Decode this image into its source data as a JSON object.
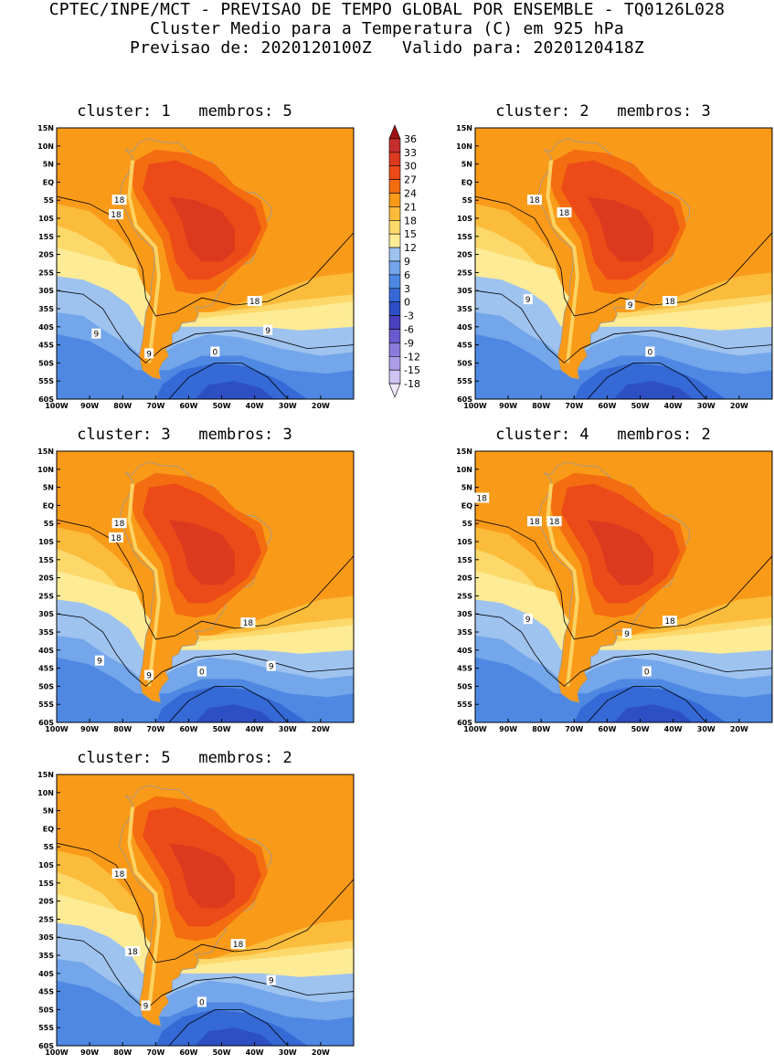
{
  "header": {
    "line1": "CPTEC/INPE/MCT - PREVISAO DE TEMPO GLOBAL POR ENSEMBLE - TQ0126L028",
    "line2": "Cluster Medio para a Temperatura (C) em 925 hPa",
    "line3": "Previsao de: 2020120100Z   Valido para: 2020120418Z"
  },
  "axes": {
    "lat_ticks": [
      "15N",
      "10N",
      "5N",
      "EQ",
      "5S",
      "10S",
      "15S",
      "20S",
      "25S",
      "30S",
      "35S",
      "40S",
      "45S",
      "50S",
      "55S",
      "60S"
    ],
    "lon_ticks": [
      "100W",
      "90W",
      "80W",
      "70W",
      "60W",
      "50W",
      "40W",
      "30W",
      "20W"
    ]
  },
  "panels": [
    {
      "title": "cluster: 1   membros: 5",
      "contour_labels": [
        "18",
        "18",
        "18",
        "9",
        "9",
        "9",
        "0"
      ]
    },
    {
      "title": "cluster: 2   membros: 3",
      "contour_labels": [
        "18",
        "18",
        "18",
        "9",
        "9",
        "0"
      ]
    },
    {
      "title": "cluster: 3   membros: 3",
      "contour_labels": [
        "18",
        "18",
        "18",
        "9",
        "9",
        "9",
        "0"
      ]
    },
    {
      "title": "cluster: 4   membros: 2",
      "contour_labels": [
        "18",
        "18",
        "18",
        "18",
        "9",
        "9",
        "0"
      ]
    },
    {
      "title": "cluster: 5   membros: 2",
      "contour_labels": [
        "18",
        "18",
        "18",
        "9",
        "9",
        "0"
      ]
    }
  ],
  "colorbar": {
    "labels": [
      "36",
      "33",
      "30",
      "27",
      "24",
      "21",
      "18",
      "15",
      "12",
      "9",
      "6",
      "3",
      "0",
      "-3",
      "-6",
      "-9",
      "-12",
      "-15",
      "-18"
    ],
    "colors": [
      "#a11212",
      "#c72e2e",
      "#dc3a1f",
      "#ec4a18",
      "#f46d10",
      "#f99a18",
      "#fbbc3c",
      "#fcd96a",
      "#fdeb96",
      "#9fc3ef",
      "#73a6ea",
      "#4e88e2",
      "#3569d6",
      "#2d4fc4",
      "#4a3fbc",
      "#6a5bd0",
      "#8b7bdc",
      "#ad9de8",
      "#cfc3f2",
      "#eee8fb"
    ]
  }
}
